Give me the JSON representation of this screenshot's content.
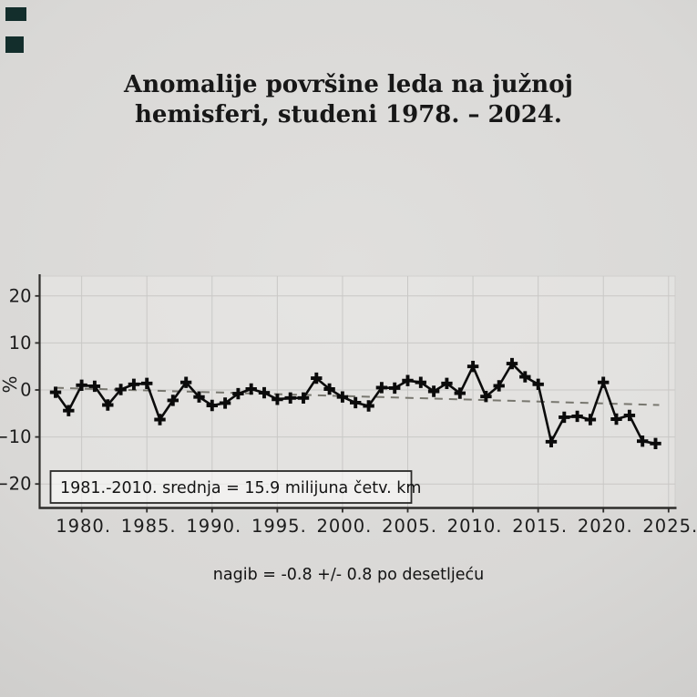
{
  "page": {
    "title_line1": "Anomalije površine leda na južnoj",
    "title_line2": "hemisferi, studeni 1978. – 2024."
  },
  "chart_data": {
    "type": "line",
    "title": "Anomalije površine leda na južnoj hemisferi, studeni 1978. – 2024.",
    "ylabel": "%",
    "xlabel": "",
    "grid": true,
    "legend_position": "none",
    "marker": "plus",
    "x": [
      1978,
      1979,
      1980,
      1981,
      1982,
      1983,
      1984,
      1985,
      1986,
      1987,
      1988,
      1989,
      1990,
      1991,
      1992,
      1993,
      1994,
      1995,
      1996,
      1997,
      1998,
      1999,
      2000,
      2001,
      2002,
      2003,
      2004,
      2005,
      2006,
      2007,
      2008,
      2009,
      2010,
      2011,
      2012,
      2013,
      2014,
      2015,
      2016,
      2017,
      2018,
      2019,
      2020,
      2021,
      2022,
      2023,
      2024
    ],
    "values": [
      -0.5,
      -4.4,
      1.0,
      0.8,
      -3.2,
      0.1,
      1.2,
      1.4,
      -6.3,
      -2.2,
      1.6,
      -1.5,
      -3.3,
      -2.8,
      -0.8,
      0.2,
      -0.6,
      -2.0,
      -1.7,
      -1.7,
      2.5,
      0.2,
      -1.5,
      -2.7,
      -3.4,
      0.5,
      0.4,
      2.0,
      1.6,
      -0.3,
      1.4,
      -0.7,
      5.0,
      -1.4,
      0.9,
      5.6,
      2.8,
      1.2,
      -11.0,
      -5.8,
      -5.6,
      -6.3,
      1.6,
      -6.2,
      -5.4,
      -10.9,
      -11.4
    ],
    "y_ticks": [
      {
        "value": 20,
        "label": "20"
      },
      {
        "value": 10,
        "label": "10"
      },
      {
        "value": 0,
        "label": "0"
      },
      {
        "value": -10,
        "label": "−10"
      },
      {
        "value": -20,
        "label": "−20"
      }
    ],
    "x_ticks": [
      {
        "year": 1980,
        "label": "1980."
      },
      {
        "year": 1985,
        "label": "1985."
      },
      {
        "year": 1990,
        "label": "1990."
      },
      {
        "year": 1995,
        "label": "1995."
      },
      {
        "year": 2000,
        "label": "2000."
      },
      {
        "year": 2005,
        "label": "2005."
      },
      {
        "year": 2010,
        "label": "2010."
      },
      {
        "year": 2015,
        "label": "2015."
      },
      {
        "year": 2020,
        "label": "2020."
      },
      {
        "year": 2025,
        "label": "2025."
      }
    ],
    "ylim": [
      -25,
      24
    ],
    "xlim": [
      1976.8,
      2025.5
    ],
    "annotation": "1981.-2010. srednja = 15.9 milijuna četv. km",
    "caption": "nagib = -0.8 +/- 0.8 po desetljeću",
    "trend_line": {
      "per_decade_slope": -0.8,
      "uncertainty": 0.8,
      "start_year": 1978,
      "start_value": 0.45,
      "end_year": 2024,
      "end_value": -3.2,
      "style": "dashed"
    },
    "colors": {
      "line": "#0b0b0b",
      "trend": "#78776f",
      "grid": "#c9c8c6",
      "axis": "#2e2d2b",
      "text": "#1c1c1c",
      "annotation_box_fill": "rgba(250,250,248,0.6)"
    }
  }
}
